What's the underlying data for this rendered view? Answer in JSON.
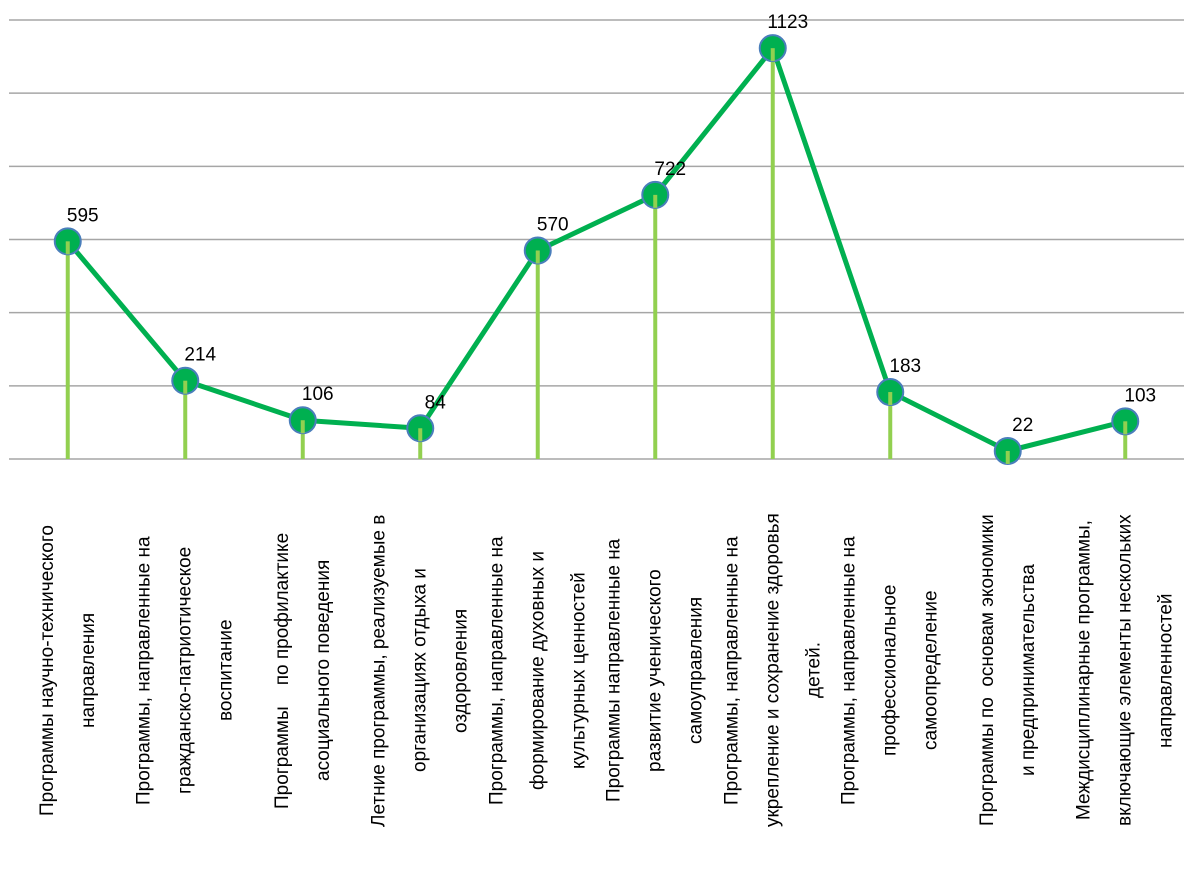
{
  "chart_data": {
    "type": "line",
    "categories": [
      "Программы научно-технического\nнаправления",
      "Программы, направленные на\nгражданско-патриотическое\nвоспитание",
      "Программы    по профилактике\nасоциального поведения",
      "Летние программы, реализуемые в\nорганизациях отдыха и\nоздоровления",
      "Программы, направленные на\nформирование духовных и\nкультурных ценностей",
      "Программы направленные на\nразвитие ученического\nсамоуправления",
      "Программы, направленные на\nукрепление и сохранение здоровья\nдетей.",
      "Программы, направленные на\nпрофессиональное\nсамоопределение",
      "Программы по  основам экономики\nи предпринимательства",
      "Междисциплинарные программы,\nвключающие элементы нескольких\nнаправленностей"
    ],
    "values": [
      595,
      214,
      106,
      84,
      570,
      722,
      1123,
      183,
      22,
      103
    ],
    "color": "#00b050",
    "drop_color": "#92d050",
    "marker_edge": "#4a7ebb",
    "ylim": [
      0,
      1200
    ],
    "yticks": [
      0,
      200,
      400,
      600,
      800,
      1000,
      1200
    ],
    "grid": true
  }
}
